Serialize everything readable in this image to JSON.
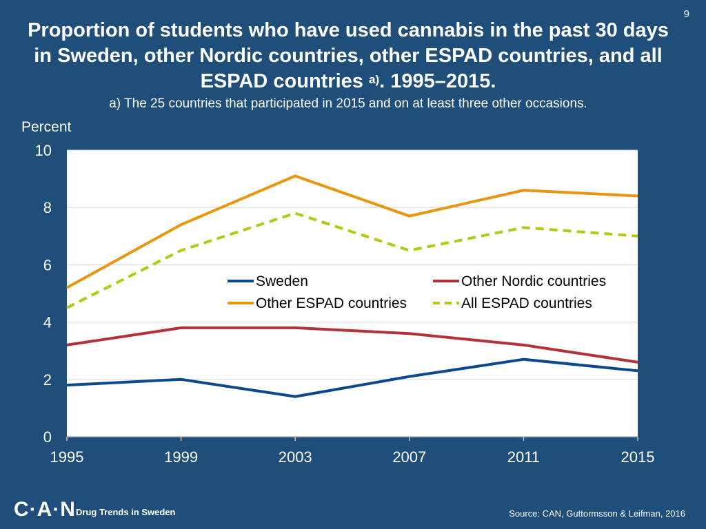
{
  "page_number": "9",
  "title_main": "Proportion of students who have used cannabis in the past 30 days in Sweden, other Nordic countries, other ESPAD countries, and all ESPAD countries",
  "title_sup": "a)",
  "title_tail": ". 1995–2015.",
  "subtitle": "a) The 25 countries that participated in 2015 and on at least three other occasions.",
  "footer": {
    "logo": "C·A·N",
    "left": "Drug Trends in Sweden",
    "right": "Source: CAN, Guttormsson & Leifman, 2016"
  },
  "colors": {
    "background": "#1f4e7a",
    "plot_bg": "#ffffff",
    "grid": "#d9d9d9"
  },
  "chart_data": {
    "type": "line",
    "title": "Proportion of students who have used cannabis in the past 30 days",
    "ylabel": "Percent",
    "xlabel": "",
    "x": [
      1995,
      1999,
      2003,
      2007,
      2011,
      2015
    ],
    "ylim": [
      0,
      10
    ],
    "yticks": [
      0,
      2,
      4,
      6,
      8,
      10
    ],
    "grid": true,
    "legend_position": "center-right",
    "series": [
      {
        "name": "Sweden",
        "color": "#0b4a8a",
        "dash": "solid",
        "values": [
          1.8,
          2.0,
          1.4,
          2.1,
          2.7,
          2.3
        ]
      },
      {
        "name": "Other Nordic countries",
        "color": "#b5313a",
        "dash": "solid",
        "values": [
          3.2,
          3.8,
          3.8,
          3.6,
          3.2,
          2.6
        ]
      },
      {
        "name": "Other ESPAD countries",
        "color": "#e8960f",
        "dash": "solid",
        "values": [
          5.2,
          7.4,
          9.1,
          7.7,
          8.6,
          8.4
        ]
      },
      {
        "name": "All ESPAD countries",
        "color": "#b5c817",
        "dash": "dashed",
        "values": [
          4.5,
          6.5,
          7.8,
          6.5,
          7.3,
          7.0
        ]
      }
    ]
  }
}
